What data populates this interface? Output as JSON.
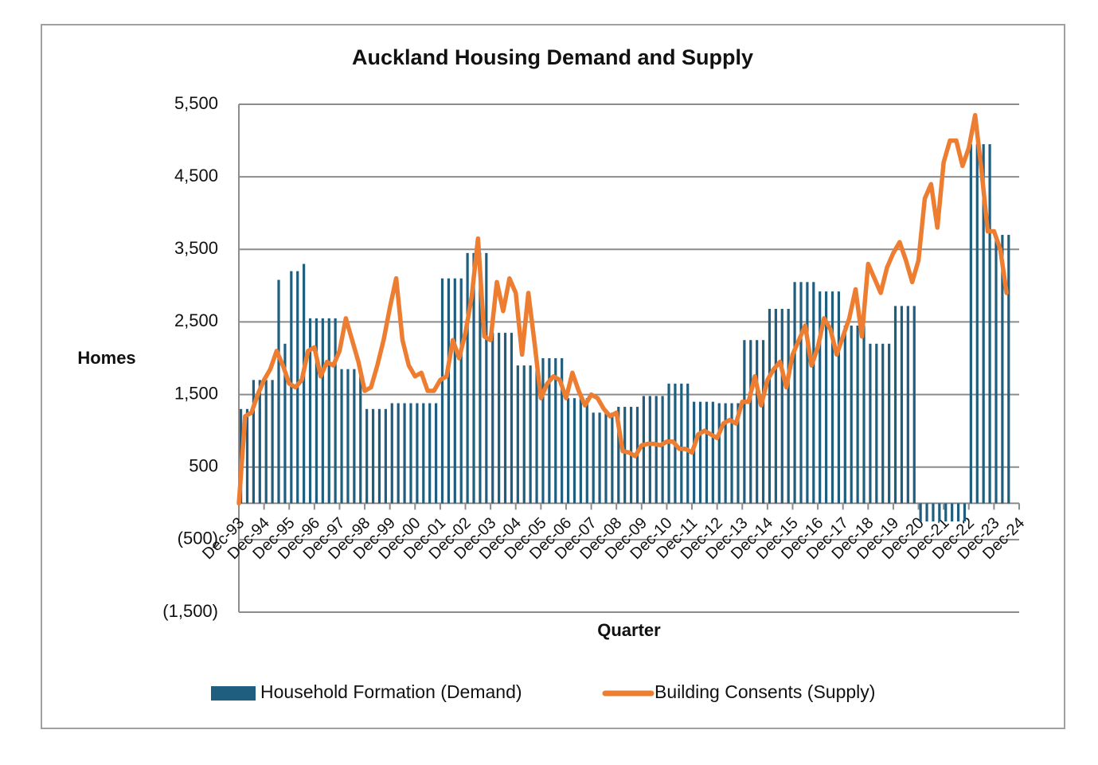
{
  "chart_data": {
    "type": "bar-line",
    "title": "Auckland Housing Demand and Supply",
    "y_label": "Homes",
    "x_label": "Quarter",
    "categories": [
      "Dec-93",
      null,
      null,
      null,
      "Dec-94",
      null,
      null,
      null,
      "Dec-95",
      null,
      null,
      null,
      "Dec-96",
      null,
      null,
      null,
      "Dec-97",
      null,
      null,
      null,
      "Dec-98",
      null,
      null,
      null,
      "Dec-99",
      null,
      null,
      null,
      "Dec-00",
      null,
      null,
      null,
      "Dec-01",
      null,
      null,
      null,
      "Dec-02",
      null,
      null,
      null,
      "Dec-03",
      null,
      null,
      null,
      "Dec-04",
      null,
      null,
      null,
      "Dec-05",
      null,
      null,
      null,
      "Dec-06",
      null,
      null,
      null,
      "Dec-07",
      null,
      null,
      null,
      "Dec-08",
      null,
      null,
      null,
      "Dec-09",
      null,
      null,
      null,
      "Dec-10",
      null,
      null,
      null,
      "Dec-11",
      null,
      null,
      null,
      "Dec-12",
      null,
      null,
      null,
      "Dec-13",
      null,
      null,
      null,
      "Dec-14",
      null,
      null,
      null,
      "Dec-15",
      null,
      null,
      null,
      "Dec-16",
      null,
      null,
      null,
      "Dec-17",
      null,
      null,
      null,
      "Dec-18",
      null,
      null,
      null,
      "Dec-19",
      null,
      null,
      null,
      "Dec-20",
      null,
      null,
      null,
      "Dec-21",
      null,
      null,
      null,
      "Dec-22",
      null,
      null,
      null,
      "Dec-23",
      null,
      null,
      null,
      "Dec-24"
    ],
    "series": [
      {
        "name": "Household Formation (Demand)",
        "type": "bar",
        "color": "#1f5e7e",
        "values": [
          1300,
          1300,
          1700,
          1700,
          1700,
          1700,
          3080,
          2200,
          3200,
          3200,
          3300,
          2550,
          2550,
          2550,
          2550,
          2550,
          1850,
          1850,
          1850,
          1850,
          1300,
          1300,
          1300,
          1300,
          1380,
          1380,
          1380,
          1380,
          1380,
          1380,
          1380,
          1380,
          3100,
          3100,
          3100,
          3100,
          3450,
          3450,
          3450,
          3450,
          2350,
          2350,
          2350,
          2350,
          1900,
          1900,
          1900,
          1900,
          2000,
          2000,
          2000,
          2000,
          1450,
          1450,
          1450,
          1450,
          1250,
          1250,
          1250,
          1250,
          1330,
          1330,
          1330,
          1330,
          1480,
          1480,
          1480,
          1480,
          1650,
          1650,
          1650,
          1650,
          1400,
          1400,
          1400,
          1400,
          1380,
          1380,
          1380,
          1380,
          2250,
          2250,
          2250,
          2250,
          2680,
          2680,
          2680,
          2680,
          3050,
          3050,
          3050,
          3050,
          2920,
          2920,
          2920,
          2920,
          2450,
          2450,
          2450,
          2450,
          2200,
          2200,
          2200,
          2200,
          2720,
          2720,
          2720,
          2720,
          -250,
          -250,
          -250,
          -250,
          -250,
          -250,
          -250,
          -250,
          4950,
          4950,
          4950,
          4950,
          3700,
          3700,
          3700,
          null,
          null
        ]
      },
      {
        "name": "Building Consents (Supply)",
        "type": "line",
        "color": "#ed7d31",
        "values": [
          0,
          1200,
          1250,
          1500,
          1700,
          1850,
          2100,
          1900,
          1650,
          1600,
          1700,
          2100,
          2150,
          1750,
          1950,
          1900,
          2100,
          2550,
          2250,
          1950,
          1550,
          1600,
          1900,
          2250,
          2700,
          3100,
          2250,
          1900,
          1750,
          1800,
          1550,
          1550,
          1700,
          1750,
          2250,
          2000,
          2350,
          2850,
          3650,
          2300,
          2250,
          3050,
          2650,
          3100,
          2900,
          2050,
          2900,
          2200,
          1450,
          1650,
          1750,
          1700,
          1450,
          1800,
          1550,
          1350,
          1500,
          1450,
          1300,
          1200,
          1250,
          720,
          700,
          650,
          800,
          820,
          820,
          800,
          850,
          850,
          750,
          750,
          700,
          950,
          1000,
          950,
          900,
          1100,
          1150,
          1100,
          1400,
          1400,
          1750,
          1350,
          1700,
          1850,
          1950,
          1600,
          2050,
          2250,
          2450,
          1900,
          2150,
          2550,
          2400,
          2050,
          2300,
          2550,
          2950,
          2300,
          3300,
          3100,
          2900,
          3250,
          3450,
          3600,
          3350,
          3050,
          3350,
          4200,
          4400,
          3800,
          4700,
          5000,
          5000,
          4650,
          4900,
          5350,
          4600,
          3750,
          3750,
          3500,
          2900,
          null,
          null
        ]
      }
    ],
    "ylim": [
      -1500,
      5500
    ],
    "yticks": [
      {
        "value": -1500,
        "label": "(1,500)"
      },
      {
        "value": -500,
        "label": "(500)"
      },
      {
        "value": 500,
        "label": "500"
      },
      {
        "value": 1500,
        "label": "1,500"
      },
      {
        "value": 2500,
        "label": "2,500"
      },
      {
        "value": 3500,
        "label": "3,500"
      },
      {
        "value": 4500,
        "label": "4,500"
      },
      {
        "value": 5500,
        "label": "5,500"
      }
    ],
    "grid": true,
    "legend": "bottom"
  }
}
